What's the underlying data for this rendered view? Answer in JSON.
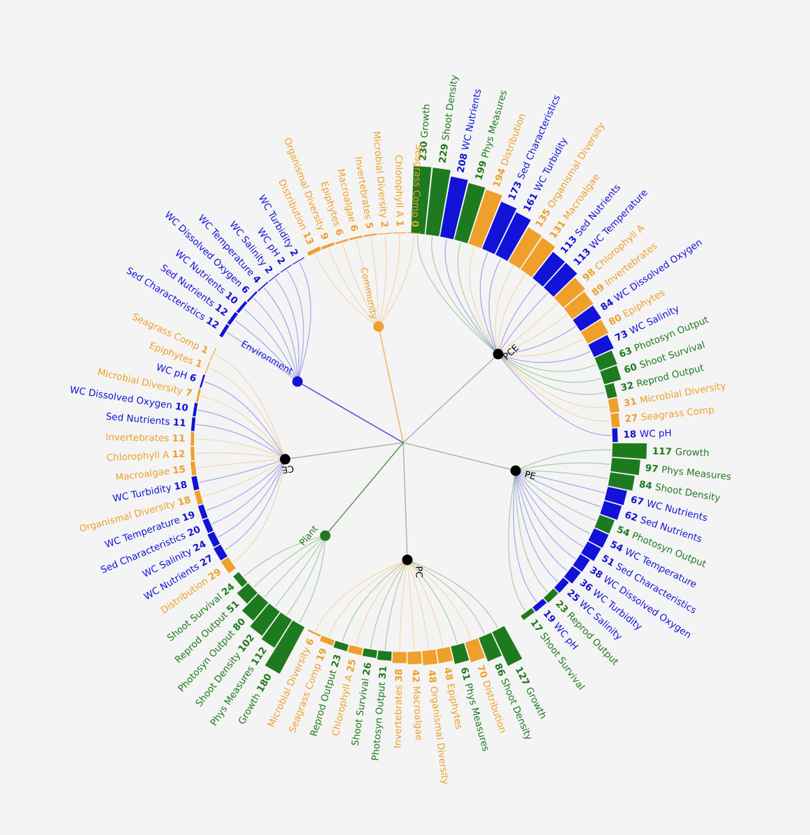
{
  "colors": {
    "plant": "#1e7a1e",
    "environment": "#1212d8",
    "community": "#eea02a",
    "node": "#000000",
    "link": "#999999"
  },
  "hubs": [
    {
      "name": "Community",
      "color": "community"
    },
    {
      "name": "Environment",
      "color": "environment"
    },
    {
      "name": "Plant",
      "color": "plant"
    }
  ],
  "chart_data": {
    "type": "radial-bar",
    "groups": [
      {
        "name": "PCE",
        "items": [
          {
            "label": "Growth",
            "value": 230,
            "cat": "plant"
          },
          {
            "label": "Shoot Density",
            "value": 229,
            "cat": "plant"
          },
          {
            "label": "WC Nutrients",
            "value": 208,
            "cat": "environment"
          },
          {
            "label": "Phys Measures",
            "value": 199,
            "cat": "plant"
          },
          {
            "label": "Distribution",
            "value": 194,
            "cat": "community"
          },
          {
            "label": "Sed Characteristics",
            "value": 173,
            "cat": "environment"
          },
          {
            "label": "WC Turbidity",
            "value": 161,
            "cat": "environment"
          },
          {
            "label": "Organismal Diversity",
            "value": 135,
            "cat": "community"
          },
          {
            "label": "Macroalgae",
            "value": 131,
            "cat": "community"
          },
          {
            "label": "Sed Nutrients",
            "value": 113,
            "cat": "environment"
          },
          {
            "label": "WC Temperature",
            "value": 113,
            "cat": "environment"
          },
          {
            "label": "Chlorophyll A",
            "value": 98,
            "cat": "community"
          },
          {
            "label": "Invertebrates",
            "value": 89,
            "cat": "community"
          },
          {
            "label": "WC Dissolved Oxygen",
            "value": 84,
            "cat": "environment"
          },
          {
            "label": "Epiphytes",
            "value": 80,
            "cat": "community"
          },
          {
            "label": "WC Salinity",
            "value": 73,
            "cat": "environment"
          },
          {
            "label": "Photosyn Output",
            "value": 63,
            "cat": "plant"
          },
          {
            "label": "Shoot Survival",
            "value": 60,
            "cat": "plant"
          },
          {
            "label": "Reprod Output",
            "value": 32,
            "cat": "plant"
          },
          {
            "label": "Microbial Diversity",
            "value": 31,
            "cat": "community"
          },
          {
            "label": "Seagrass Comp",
            "value": 27,
            "cat": "community"
          },
          {
            "label": "WC pH",
            "value": 18,
            "cat": "environment"
          }
        ]
      },
      {
        "name": "PE",
        "items": [
          {
            "label": "Growth",
            "value": 117,
            "cat": "plant"
          },
          {
            "label": "Phys Measures",
            "value": 97,
            "cat": "plant"
          },
          {
            "label": "Shoot Density",
            "value": 84,
            "cat": "plant"
          },
          {
            "label": "WC Nutrients",
            "value": 67,
            "cat": "environment"
          },
          {
            "label": "Sed Nutrients",
            "value": 62,
            "cat": "environment"
          },
          {
            "label": "Photosyn Output",
            "value": 54,
            "cat": "plant"
          },
          {
            "label": "WC Temperature",
            "value": 54,
            "cat": "environment"
          },
          {
            "label": "Sed Characteristics",
            "value": 51,
            "cat": "environment"
          },
          {
            "label": "WC Dissolved Oxygen",
            "value": 38,
            "cat": "environment"
          },
          {
            "label": "WC Turbidity",
            "value": 36,
            "cat": "environment"
          },
          {
            "label": "WC Salinity",
            "value": 25,
            "cat": "environment"
          },
          {
            "label": "Reprod Output",
            "value": 23,
            "cat": "plant"
          },
          {
            "label": "WC pH",
            "value": 19,
            "cat": "environment"
          },
          {
            "label": "Shoot Survival",
            "value": 17,
            "cat": "plant"
          }
        ]
      },
      {
        "name": "PC",
        "items": [
          {
            "label": "Growth",
            "value": 127,
            "cat": "plant"
          },
          {
            "label": "Shoot Density",
            "value": 86,
            "cat": "plant"
          },
          {
            "label": "Distribution",
            "value": 70,
            "cat": "community"
          },
          {
            "label": "Phys Measures",
            "value": 61,
            "cat": "plant"
          },
          {
            "label": "Epiphytes",
            "value": 48,
            "cat": "community"
          },
          {
            "label": "Organismal Diversity",
            "value": 48,
            "cat": "community"
          },
          {
            "label": "Macroalgae",
            "value": 42,
            "cat": "community"
          },
          {
            "label": "Invertebrates",
            "value": 38,
            "cat": "community"
          },
          {
            "label": "Photosyn Output",
            "value": 31,
            "cat": "plant"
          },
          {
            "label": "Shoot Survival",
            "value": 26,
            "cat": "plant"
          },
          {
            "label": "Chlorophyll A",
            "value": 25,
            "cat": "community"
          },
          {
            "label": "Reprod Output",
            "value": 23,
            "cat": "plant"
          },
          {
            "label": "Seagrass Comp",
            "value": 19,
            "cat": "community"
          },
          {
            "label": "Microbial Diversity",
            "value": 6,
            "cat": "community"
          }
        ]
      },
      {
        "name": "Plant",
        "items": [
          {
            "label": "Growth",
            "value": 180,
            "cat": "plant"
          },
          {
            "label": "Phys Measures",
            "value": 112,
            "cat": "plant"
          },
          {
            "label": "Shoot Density",
            "value": 102,
            "cat": "plant"
          },
          {
            "label": "Photosyn Output",
            "value": 80,
            "cat": "plant"
          },
          {
            "label": "Reprod Output",
            "value": 51,
            "cat": "plant"
          },
          {
            "label": "Shoot Survival",
            "value": 24,
            "cat": "plant"
          }
        ]
      },
      {
        "name": "CE",
        "items": [
          {
            "label": "Distribution",
            "value": 29,
            "cat": "community"
          },
          {
            "label": "WC Nutrients",
            "value": 27,
            "cat": "environment"
          },
          {
            "label": "WC Salinity",
            "value": 24,
            "cat": "environment"
          },
          {
            "label": "Sed Characteristics",
            "value": 20,
            "cat": "environment"
          },
          {
            "label": "WC Temperature",
            "value": 19,
            "cat": "environment"
          },
          {
            "label": "Organismal Diversity",
            "value": 18,
            "cat": "community"
          },
          {
            "label": "WC Turbidity",
            "value": 18,
            "cat": "environment"
          },
          {
            "label": "Macroalgae",
            "value": 15,
            "cat": "community"
          },
          {
            "label": "Chlorophyll A",
            "value": 12,
            "cat": "community"
          },
          {
            "label": "Invertebrates",
            "value": 11,
            "cat": "community"
          },
          {
            "label": "Sed Nutrients",
            "value": 11,
            "cat": "environment"
          },
          {
            "label": "WC Dissolved Oxygen",
            "value": 10,
            "cat": "environment"
          },
          {
            "label": "Microbial Diversity",
            "value": 7,
            "cat": "community"
          },
          {
            "label": "WC pH",
            "value": 6,
            "cat": "environment"
          },
          {
            "label": "Epiphytes",
            "value": 1,
            "cat": "community"
          },
          {
            "label": "Seagrass Comp",
            "value": 1,
            "cat": "community"
          }
        ]
      },
      {
        "name": "Environment",
        "items": [
          {
            "label": "Sed Characteristics",
            "value": 12,
            "cat": "environment"
          },
          {
            "label": "Sed Nutrients",
            "value": 12,
            "cat": "environment"
          },
          {
            "label": "WC Nutrients",
            "value": 10,
            "cat": "environment"
          },
          {
            "label": "WC Dissolved Oxygen",
            "value": 6,
            "cat": "environment"
          },
          {
            "label": "WC Temperature",
            "value": 4,
            "cat": "environment"
          },
          {
            "label": "WC Salinity",
            "value": 2,
            "cat": "environment"
          },
          {
            "label": "WC pH",
            "value": 2,
            "cat": "environment"
          },
          {
            "label": "WC Turbidity",
            "value": 2,
            "cat": "environment"
          }
        ]
      },
      {
        "name": "Community",
        "items": [
          {
            "label": "Distribution",
            "value": 13,
            "cat": "community"
          },
          {
            "label": "Organismal Diversity",
            "value": 9,
            "cat": "community"
          },
          {
            "label": "Epiphytes",
            "value": 6,
            "cat": "community"
          },
          {
            "label": "Macroalgae",
            "value": 6,
            "cat": "community"
          },
          {
            "label": "Invertebrates",
            "value": 5,
            "cat": "community"
          },
          {
            "label": "Microbial Diversity",
            "value": 2,
            "cat": "community"
          },
          {
            "label": "Chlorophyll A",
            "value": 1,
            "cat": "community"
          },
          {
            "label": "Seagrass Comp",
            "value": 0,
            "cat": "community"
          }
        ]
      }
    ]
  }
}
